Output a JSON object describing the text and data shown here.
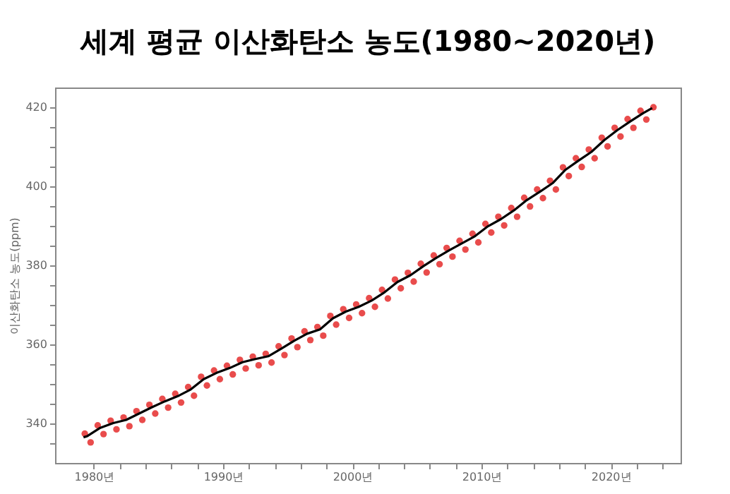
{
  "chart_data": {
    "type": "scatter",
    "title": "세계 평균 이산화탄소 농도(1980~2020년)",
    "ylabel": "이산화탄소 농도(ppm)",
    "xlim": [
      1977,
      2025.4
    ],
    "ylim": [
      330,
      425
    ],
    "xticks": [
      {
        "value": 1980,
        "label": "1980년"
      },
      {
        "value": 1982,
        "label": null
      },
      {
        "value": 1984,
        "label": null
      },
      {
        "value": 1986,
        "label": null
      },
      {
        "value": 1988,
        "label": null
      },
      {
        "value": 1990,
        "label": "1990년"
      },
      {
        "value": 1992,
        "label": null
      },
      {
        "value": 1994,
        "label": null
      },
      {
        "value": 1996,
        "label": null
      },
      {
        "value": 1998,
        "label": null
      },
      {
        "value": 2000,
        "label": "2000년"
      },
      {
        "value": 2002,
        "label": null
      },
      {
        "value": 2004,
        "label": null
      },
      {
        "value": 2006,
        "label": null
      },
      {
        "value": 2008,
        "label": null
      },
      {
        "value": 2010,
        "label": "2010년"
      },
      {
        "value": 2012,
        "label": null
      },
      {
        "value": 2014,
        "label": null
      },
      {
        "value": 2016,
        "label": null
      },
      {
        "value": 2018,
        "label": null
      },
      {
        "value": 2020,
        "label": "2020년"
      },
      {
        "value": 2022,
        "label": null
      },
      {
        "value": 2024,
        "label": null
      }
    ],
    "yticks": [
      {
        "value": 335,
        "label": null
      },
      340,
      {
        "value": 345,
        "label": null
      },
      {
        "value": 350,
        "label": null
      },
      {
        "value": 355,
        "label": null
      },
      360,
      {
        "value": 365,
        "label": null
      },
      {
        "value": 370,
        "label": null
      },
      {
        "value": 375,
        "label": null
      },
      380,
      {
        "value": 385,
        "label": null
      },
      {
        "value": 390,
        "label": null
      },
      {
        "value": 395,
        "label": null
      },
      400,
      {
        "value": 405,
        "label": null
      },
      {
        "value": 410,
        "label": null
      },
      {
        "value": 415,
        "label": null
      },
      420
    ],
    "grid": false,
    "series": [
      {
        "color": "#e00000",
        "marker": "circle",
        "x": [
          1979.3,
          1979.75,
          1980.3,
          1980.75,
          1981.3,
          1981.75,
          1982.3,
          1982.75,
          1983.3,
          1983.75,
          1984.3,
          1984.75,
          1985.3,
          1985.75,
          1986.3,
          1986.75,
          1987.3,
          1987.75,
          1988.3,
          1988.75,
          1989.3,
          1989.75,
          1990.3,
          1990.75,
          1991.3,
          1991.75,
          1992.3,
          1992.75,
          1993.3,
          1993.75,
          1994.3,
          1994.75,
          1995.3,
          1995.75,
          1996.3,
          1996.75,
          1997.3,
          1997.75,
          1998.3,
          1998.75,
          1999.3,
          1999.75,
          2000.3,
          2000.75,
          2001.3,
          2001.75,
          2002.3,
          2002.75,
          2003.3,
          2003.75,
          2004.3,
          2004.75,
          2005.3,
          2005.75,
          2006.3,
          2006.75,
          2007.3,
          2007.75,
          2008.3,
          2008.75,
          2009.3,
          2009.75,
          2010.3,
          2010.75,
          2011.3,
          2011.75,
          2012.3,
          2012.75,
          2013.3,
          2013.75,
          2014.3,
          2014.75,
          2015.3,
          2015.75,
          2016.3,
          2016.75,
          2017.3,
          2017.75,
          2018.3,
          2018.75,
          2019.3,
          2019.75,
          2020.3,
          2020.75,
          2021.3,
          2021.75,
          2022.3,
          2022.75,
          2023.3
        ],
        "values": [
          337.4,
          335.2,
          339.5,
          337.3,
          340.7,
          338.5,
          341.5,
          339.3,
          343.1,
          340.9,
          344.7,
          342.5,
          346.2,
          344.0,
          347.5,
          345.3,
          349.2,
          347.0,
          351.8,
          349.6,
          353.4,
          351.2,
          354.6,
          352.4,
          356.1,
          353.9,
          356.9,
          354.7,
          357.6,
          355.4,
          359.5,
          357.3,
          361.5,
          359.3,
          363.3,
          361.1,
          364.4,
          362.2,
          367.2,
          365.0,
          368.9,
          366.7,
          370.1,
          367.9,
          371.7,
          369.5,
          373.8,
          371.6,
          376.4,
          374.2,
          378.1,
          375.9,
          380.4,
          378.2,
          382.5,
          380.3,
          384.4,
          382.2,
          386.2,
          384.0,
          388.0,
          385.8,
          390.5,
          388.3,
          392.3,
          390.1,
          394.5,
          392.3,
          397.1,
          394.9,
          399.2,
          397.0,
          401.4,
          399.2,
          404.8,
          402.6,
          407.1,
          404.9,
          409.3,
          407.1,
          412.3,
          410.1,
          414.8,
          412.6,
          417.0,
          414.8,
          419.1,
          416.9,
          420.0
        ]
      },
      {
        "type": "line",
        "marker": "none",
        "color": "#000000",
        "x": [
          1979.2,
          1979.5,
          1980.5,
          1981.5,
          1982.5,
          1983.5,
          1984.5,
          1985.5,
          1986.5,
          1987.5,
          1988.5,
          1989.5,
          1990.5,
          1991.5,
          1992.5,
          1993.5,
          1994.5,
          1995.5,
          1996.5,
          1997.5,
          1998.5,
          1999.5,
          2000.5,
          2001.5,
          2002.5,
          2003.5,
          2004.5,
          2005.5,
          2006.5,
          2007.5,
          2008.5,
          2009.5,
          2010.5,
          2011.5,
          2012.5,
          2013.5,
          2014.5,
          2015.5,
          2016.5,
          2017.5,
          2018.5,
          2019.5,
          2020.5,
          2021.5,
          2022.5,
          2023.2
        ],
        "values": [
          336.5,
          336.8,
          338.9,
          340.1,
          340.9,
          342.5,
          344.1,
          345.6,
          346.9,
          348.6,
          351.2,
          352.8,
          354.0,
          355.5,
          356.3,
          357.0,
          358.9,
          360.9,
          362.7,
          363.8,
          366.6,
          368.3,
          369.5,
          371.1,
          373.2,
          375.8,
          377.5,
          379.8,
          381.9,
          383.8,
          385.6,
          387.4,
          389.9,
          391.7,
          393.9,
          396.5,
          398.6,
          400.8,
          404.2,
          406.5,
          408.7,
          411.7,
          414.2,
          416.4,
          418.5,
          419.8
        ]
      }
    ]
  }
}
